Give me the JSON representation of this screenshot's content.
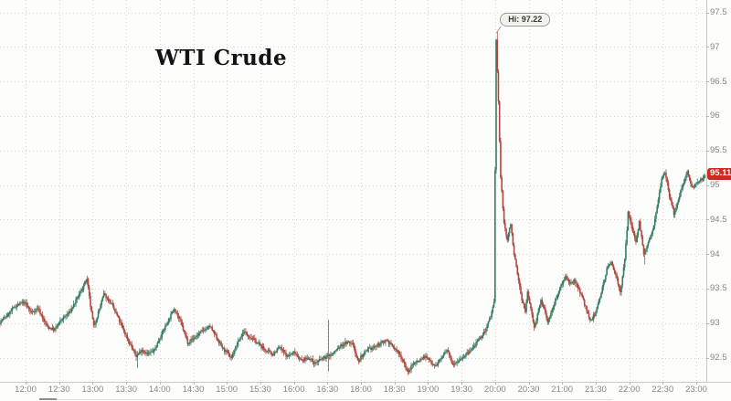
{
  "title": "WTI Crude",
  "tooltip": {
    "label": "Hi: 97.22",
    "anchor_time": "20:02"
  },
  "last_price_badge": {
    "value": "95.11",
    "price": 95.11
  },
  "colors": {
    "background": "#fdfdfb",
    "up_body": "#35805f",
    "up_wick": "#2c6b50",
    "down_body": "#b2473e",
    "down_wick": "#9c362e",
    "grid": "#d7d7d1",
    "axis": "#c9c9c3",
    "tick": "#b7b7b1",
    "label": "#87867f",
    "badge_bg": "#cb2b20",
    "tooltip_tail": "#96958d"
  },
  "chart_data": {
    "type": "candlestick",
    "title": "WTI Crude",
    "session_high": 97.22,
    "last_price": 95.11,
    "grid": "dotted",
    "y_axis": {
      "side": "right",
      "min": 92.5,
      "max": 97.5,
      "step": 0.5,
      "tick_labels": [
        "97.5",
        "97",
        "96.5",
        "96",
        "95.5",
        "95",
        "94.5",
        "94",
        "93.5",
        "93",
        "92.5"
      ]
    },
    "x_axis": {
      "tick_labels": [
        "12:00",
        "12:30",
        "13:00",
        "13:30",
        "14:00",
        "14:30",
        "15:00",
        "15:30",
        "16:00",
        "16:30",
        "18:00",
        "18:30",
        "19:00",
        "19:30",
        "20:00",
        "20:30",
        "21:00",
        "21:30",
        "22:00",
        "22:30",
        "23:00"
      ],
      "session_break": {
        "after": "16:59",
        "resume": "18:00"
      }
    },
    "price_path": [
      [
        "11:37",
        93.0
      ],
      [
        "11:45",
        93.12
      ],
      [
        "11:52",
        93.25
      ],
      [
        "12:00",
        93.3
      ],
      [
        "12:06",
        93.15
      ],
      [
        "12:12",
        93.22
      ],
      [
        "12:20",
        92.95
      ],
      [
        "12:27",
        92.9
      ],
      [
        "12:33",
        93.05
      ],
      [
        "12:40",
        93.15
      ],
      [
        "12:47",
        93.35
      ],
      [
        "12:54",
        93.58
      ],
      [
        "12:56",
        93.62
      ],
      [
        "12:59",
        93.25
      ],
      [
        "13:02",
        92.95
      ],
      [
        "13:06",
        93.15
      ],
      [
        "13:11",
        93.42
      ],
      [
        "13:17",
        93.3
      ],
      [
        "13:23",
        93.1
      ],
      [
        "13:29",
        92.88
      ],
      [
        "13:35",
        92.68
      ],
      [
        "13:40",
        92.52
      ],
      [
        "13:45",
        92.62
      ],
      [
        "13:50",
        92.55
      ],
      [
        "13:56",
        92.6
      ],
      [
        "14:02",
        92.82
      ],
      [
        "14:09",
        93.05
      ],
      [
        "14:14",
        93.22
      ],
      [
        "14:20",
        93.0
      ],
      [
        "14:26",
        92.72
      ],
      [
        "14:33",
        92.8
      ],
      [
        "14:40",
        92.9
      ],
      [
        "14:46",
        92.95
      ],
      [
        "14:52",
        92.78
      ],
      [
        "14:58",
        92.62
      ],
      [
        "15:05",
        92.5
      ],
      [
        "15:11",
        92.72
      ],
      [
        "15:16",
        92.88
      ],
      [
        "15:22",
        92.8
      ],
      [
        "15:29",
        92.7
      ],
      [
        "15:36",
        92.6
      ],
      [
        "15:42",
        92.55
      ],
      [
        "15:48",
        92.65
      ],
      [
        "15:55",
        92.52
      ],
      [
        "16:02",
        92.58
      ],
      [
        "16:08",
        92.45
      ],
      [
        "16:14",
        92.5
      ],
      [
        "16:20",
        92.42
      ],
      [
        "16:26",
        92.48
      ],
      [
        "16:31",
        92.52
      ],
      [
        "16:36",
        92.56
      ],
      [
        "16:42",
        92.66
      ],
      [
        "16:48",
        92.72
      ],
      [
        "16:54",
        92.7
      ],
      [
        "16:58",
        92.46
      ],
      [
        "18:02",
        92.52
      ],
      [
        "18:08",
        92.62
      ],
      [
        "18:14",
        92.66
      ],
      [
        "18:20",
        92.72
      ],
      [
        "18:24",
        92.76
      ],
      [
        "18:29",
        92.66
      ],
      [
        "18:34",
        92.58
      ],
      [
        "18:39",
        92.45
      ],
      [
        "18:43",
        92.28
      ],
      [
        "18:48",
        92.42
      ],
      [
        "18:53",
        92.46
      ],
      [
        "18:58",
        92.52
      ],
      [
        "19:03",
        92.45
      ],
      [
        "19:08",
        92.38
      ],
      [
        "19:13",
        92.5
      ],
      [
        "19:18",
        92.6
      ],
      [
        "19:23",
        92.42
      ],
      [
        "19:28",
        92.46
      ],
      [
        "19:33",
        92.52
      ],
      [
        "19:38",
        92.58
      ],
      [
        "19:43",
        92.68
      ],
      [
        "19:48",
        92.78
      ],
      [
        "19:53",
        92.92
      ],
      [
        "19:57",
        93.1
      ],
      [
        "20:00",
        93.3
      ],
      [
        "20:02",
        97.1
      ],
      [
        "20:04",
        96.2
      ],
      [
        "20:06",
        95.1
      ],
      [
        "20:09",
        94.45
      ],
      [
        "20:12",
        94.2
      ],
      [
        "20:15",
        94.45
      ],
      [
        "20:18",
        94.0
      ],
      [
        "20:21",
        93.7
      ],
      [
        "20:25",
        93.35
      ],
      [
        "20:28",
        93.15
      ],
      [
        "20:30",
        93.45
      ],
      [
        "20:33",
        93.2
      ],
      [
        "20:36",
        92.95
      ],
      [
        "20:39",
        93.12
      ],
      [
        "20:42",
        93.32
      ],
      [
        "20:45",
        93.2
      ],
      [
        "20:48",
        93.02
      ],
      [
        "20:52",
        93.18
      ],
      [
        "20:56",
        93.38
      ],
      [
        "21:00",
        93.55
      ],
      [
        "21:04",
        93.68
      ],
      [
        "21:08",
        93.55
      ],
      [
        "21:12",
        93.62
      ],
      [
        "21:16",
        93.5
      ],
      [
        "21:21",
        93.28
      ],
      [
        "21:26",
        93.02
      ],
      [
        "21:31",
        93.15
      ],
      [
        "21:36",
        93.45
      ],
      [
        "21:41",
        93.78
      ],
      [
        "21:45",
        93.88
      ],
      [
        "21:49",
        93.7
      ],
      [
        "21:53",
        93.45
      ],
      [
        "21:57",
        93.9
      ],
      [
        "22:00",
        94.6
      ],
      [
        "22:04",
        94.35
      ],
      [
        "22:07",
        94.18
      ],
      [
        "22:10",
        94.48
      ],
      [
        "22:14",
        93.98
      ],
      [
        "22:18",
        94.15
      ],
      [
        "22:22",
        94.35
      ],
      [
        "22:26",
        94.7
      ],
      [
        "22:30",
        95.1
      ],
      [
        "22:33",
        95.2
      ],
      [
        "22:37",
        94.85
      ],
      [
        "22:41",
        94.58
      ],
      [
        "22:45",
        94.8
      ],
      [
        "22:49",
        95.02
      ],
      [
        "22:53",
        95.18
      ],
      [
        "22:58",
        94.95
      ],
      [
        "23:02",
        95.05
      ],
      [
        "23:08",
        95.11
      ]
    ],
    "wick_events": [
      {
        "time": "13:40",
        "low": 92.35
      },
      {
        "time": "16:31",
        "high": 93.05,
        "low": 92.3
      },
      {
        "time": "20:02",
        "high": 97.22
      },
      {
        "time": "22:14",
        "low": 93.85
      }
    ]
  }
}
